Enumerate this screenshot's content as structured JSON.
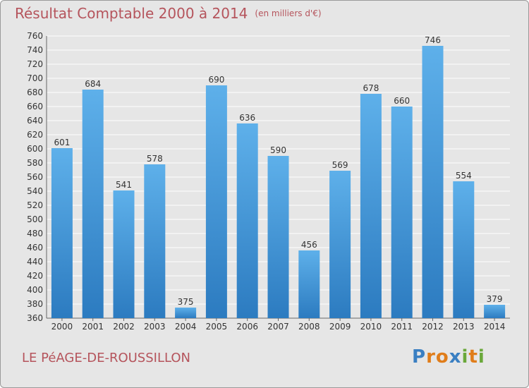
{
  "title": "Résultat Comptable 2000 à 2014",
  "title_unit": "(en milliers d'€)",
  "commune": "LE PéAGE-DE-ROUSSILLON",
  "logo": {
    "letters": [
      "P",
      "r",
      "o",
      "x",
      "i",
      "t",
      "i"
    ],
    "colors": [
      "#3a7fc2",
      "#e07d1a",
      "#e07d1a",
      "#3a7fc2",
      "#6aa83a",
      "#e07d1a",
      "#6aa83a"
    ]
  },
  "colors": {
    "title": "#b5545c",
    "bar_light": "#5eb0ea",
    "bar_dark": "#2c7bc0",
    "background": "#e6e6e6",
    "grid": "#ffffff"
  },
  "chart_data": {
    "type": "bar",
    "categories": [
      "2000",
      "2001",
      "2002",
      "2003",
      "2004",
      "2005",
      "2006",
      "2007",
      "2008",
      "2009",
      "2010",
      "2011",
      "2012",
      "2013",
      "2014"
    ],
    "values": [
      601,
      684,
      541,
      578,
      375,
      690,
      636,
      590,
      456,
      569,
      678,
      660,
      746,
      554,
      379
    ],
    "ylim": [
      360,
      760
    ],
    "yticks": [
      360,
      380,
      400,
      420,
      440,
      460,
      480,
      500,
      520,
      540,
      560,
      580,
      600,
      620,
      640,
      660,
      680,
      700,
      720,
      740,
      760
    ],
    "grid": true,
    "legend": "none"
  }
}
